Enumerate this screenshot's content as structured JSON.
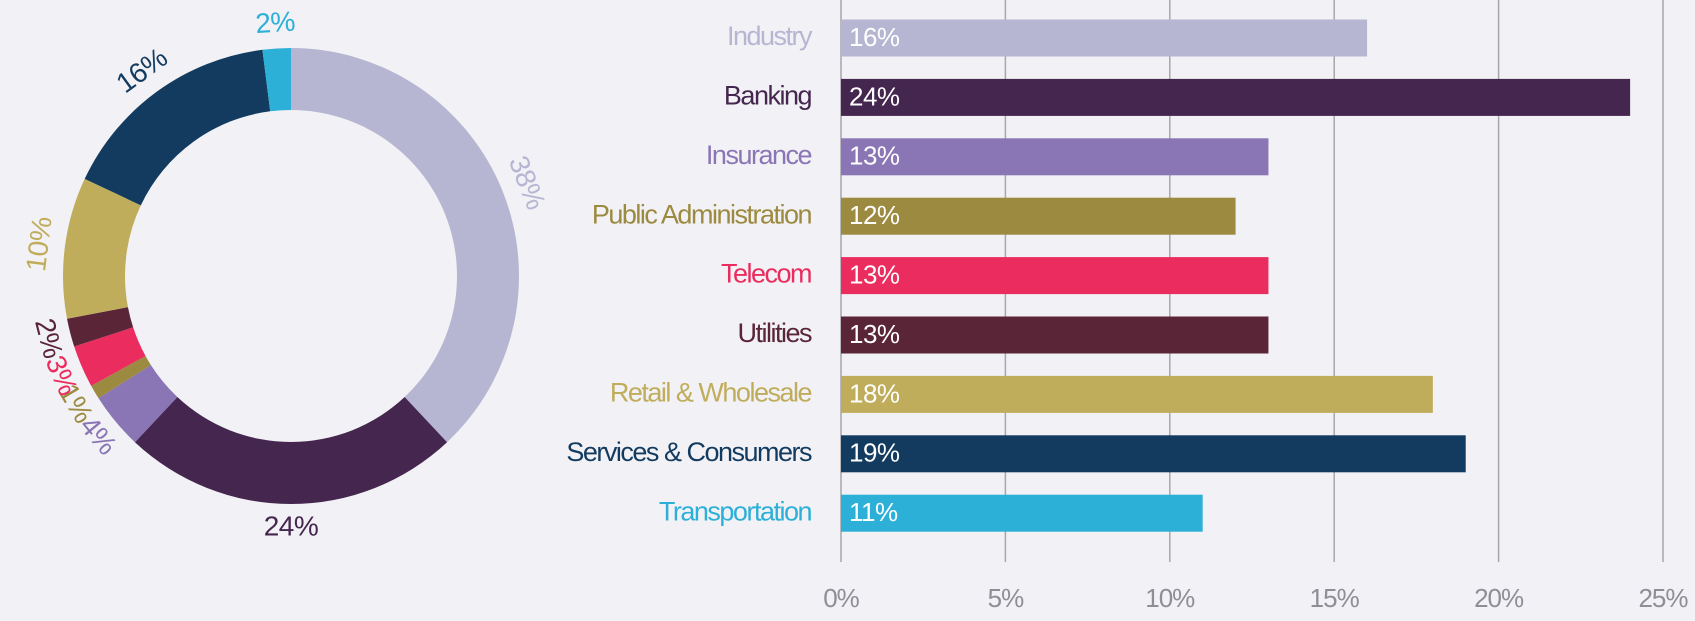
{
  "chart_data": [
    {
      "type": "donut",
      "values": [
        38,
        24,
        4,
        1,
        3,
        2,
        10,
        16,
        2
      ],
      "value_labels": [
        "38%",
        "24%",
        "4%",
        "1%",
        "3%",
        "2%",
        "10%",
        "16%",
        "2%"
      ],
      "colors": [
        "#b6b6d3",
        "#45264f",
        "#8a75b5",
        "#9b8a3f",
        "#ea2c5e",
        "#5a2537",
        "#c0ad5c",
        "#123b5f",
        "#2db0d8"
      ]
    },
    {
      "type": "barh",
      "categories": [
        "Industry",
        "Banking",
        "Insurance",
        "Public Administration",
        "Telecom",
        "Utilities",
        "Retail & Wholesale",
        "Services & Consumers",
        "Transportation"
      ],
      "values": [
        16,
        24,
        13,
        12,
        13,
        13,
        18,
        19,
        11
      ],
      "value_labels": [
        "16%",
        "24%",
        "13%",
        "12%",
        "13%",
        "13%",
        "18%",
        "19%",
        "11%"
      ],
      "colors": [
        "#b6b6d3",
        "#45264f",
        "#8a75b5",
        "#9b8a3f",
        "#ea2c5e",
        "#5a2537",
        "#c0ad5c",
        "#123b5f",
        "#2db0d8"
      ],
      "xlim": [
        0,
        25
      ],
      "xticks": [
        {
          "value": 0,
          "label": "0%"
        },
        {
          "value": 5,
          "label": "5%"
        },
        {
          "value": 10,
          "label": "10%"
        },
        {
          "value": 15,
          "label": "15%"
        },
        {
          "value": 20,
          "label": "20%"
        },
        {
          "value": 25,
          "label": "25%"
        }
      ],
      "grid": true
    }
  ]
}
